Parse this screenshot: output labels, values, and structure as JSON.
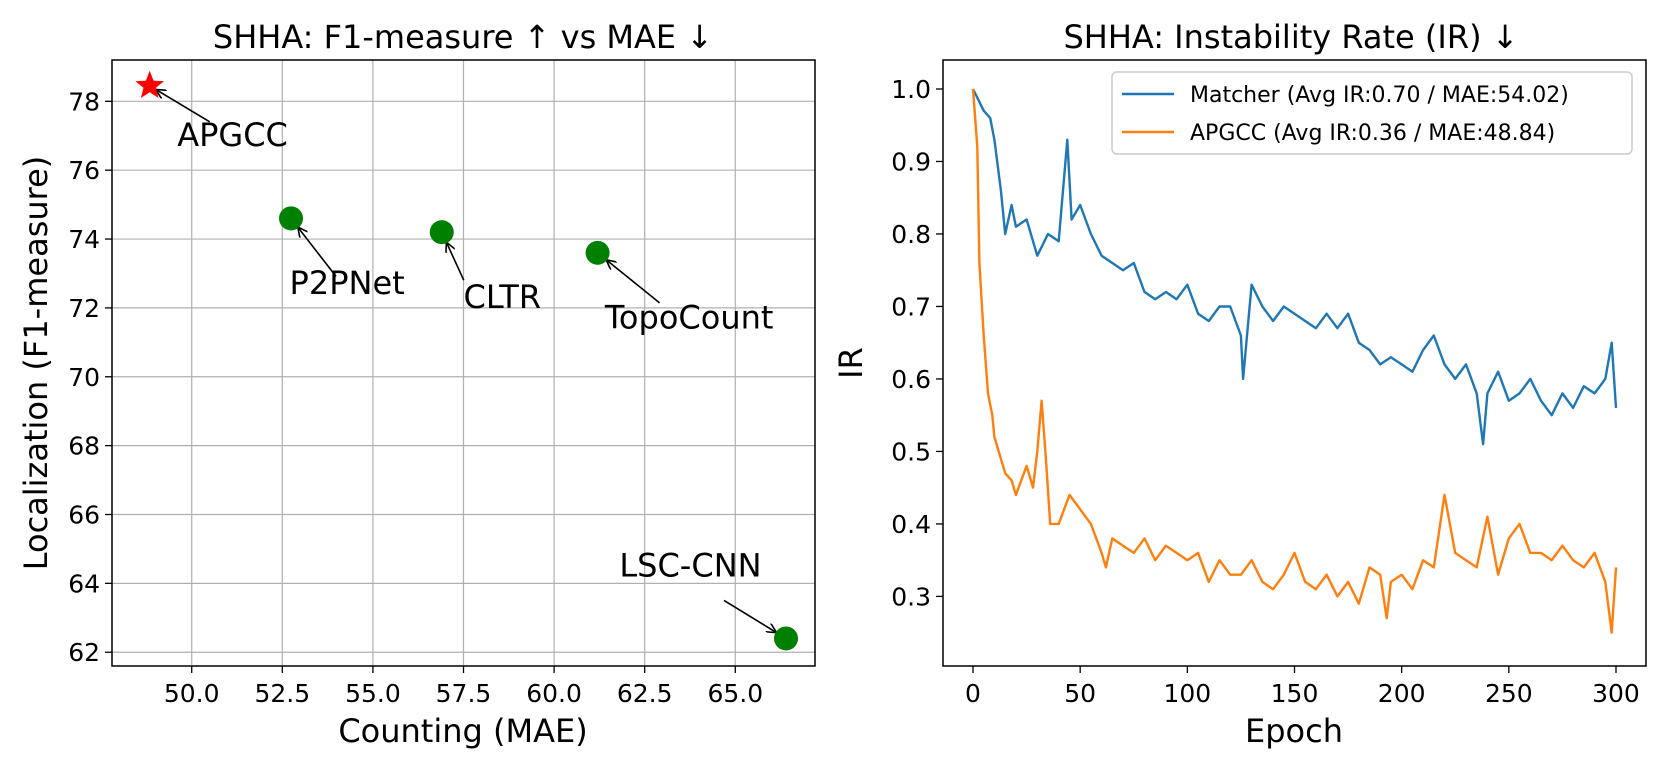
{
  "chart_data": [
    {
      "type": "scatter",
      "title": "SHHA: F1-measure ↑  vs MAE ↓",
      "xlabel": "Counting (MAE)",
      "ylabel": "Localization (F1-measure)",
      "xlim": [
        47.8,
        67.2
      ],
      "ylim": [
        61.6,
        79.2
      ],
      "xticks": [
        50.0,
        52.5,
        55.0,
        57.5,
        60.0,
        62.5,
        65.0
      ],
      "xtick_labels": [
        "50.0",
        "52.5",
        "55.0",
        "57.5",
        "60.0",
        "62.5",
        "65.0"
      ],
      "yticks": [
        62,
        64,
        66,
        68,
        70,
        72,
        74,
        76,
        78
      ],
      "ytick_labels": [
        "62",
        "64",
        "66",
        "68",
        "70",
        "72",
        "74",
        "76",
        "78"
      ],
      "grid": true,
      "points": [
        {
          "label": "APGCC",
          "x": 48.84,
          "y": 78.45,
          "marker": "star",
          "color": "#ff0000",
          "text_x": 49.6,
          "text_y": 76.7
        },
        {
          "label": "P2PNet",
          "x": 52.74,
          "y": 74.6,
          "marker": "circle",
          "color": "#008000",
          "text_x": 52.7,
          "text_y": 72.4
        },
        {
          "label": "CLTR",
          "x": 56.9,
          "y": 74.2,
          "marker": "circle",
          "color": "#008000",
          "text_x": 57.5,
          "text_y": 72.0
        },
        {
          "label": "TopoCount",
          "x": 61.2,
          "y": 73.6,
          "marker": "circle",
          "color": "#008000",
          "text_x": 61.4,
          "text_y": 71.4
        },
        {
          "label": "LSC-CNN",
          "x": 66.4,
          "y": 62.4,
          "marker": "circle",
          "color": "#008000",
          "text_x": 61.8,
          "text_y": 64.2
        }
      ]
    },
    {
      "type": "line",
      "title": "SHHA: Instability Rate (IR) ↓",
      "xlabel": "Epoch",
      "ylabel": "IR",
      "xlim": [
        -14,
        314
      ],
      "ylim": [
        0.204,
        1.04
      ],
      "xticks": [
        0,
        50,
        100,
        150,
        200,
        250,
        300
      ],
      "xtick_labels": [
        "0",
        "50",
        "100",
        "150",
        "200",
        "250",
        "300"
      ],
      "yticks": [
        0.3,
        0.4,
        0.5,
        0.6,
        0.7,
        0.8,
        0.9,
        1.0
      ],
      "ytick_labels": [
        "0.3",
        "0.4",
        "0.5",
        "0.6",
        "0.7",
        "0.8",
        "0.9",
        "1.0"
      ],
      "grid": false,
      "legend_position": "top-right",
      "series": [
        {
          "name": "Matcher (Avg IR:0.70 / MAE:54.02)",
          "color": "#1f77b4",
          "x": [
            0,
            5,
            8,
            10,
            13,
            15,
            18,
            20,
            25,
            30,
            35,
            40,
            44,
            46,
            50,
            55,
            60,
            65,
            70,
            75,
            80,
            85,
            90,
            95,
            100,
            105,
            110,
            115,
            120,
            125,
            126,
            130,
            135,
            140,
            145,
            150,
            155,
            160,
            165,
            170,
            175,
            180,
            185,
            190,
            195,
            200,
            205,
            210,
            215,
            220,
            225,
            230,
            235,
            238,
            240,
            245,
            250,
            255,
            260,
            265,
            270,
            275,
            280,
            285,
            290,
            295,
            298,
            300
          ],
          "y": [
            1.0,
            0.97,
            0.96,
            0.93,
            0.86,
            0.8,
            0.84,
            0.81,
            0.82,
            0.77,
            0.8,
            0.79,
            0.93,
            0.82,
            0.84,
            0.8,
            0.77,
            0.76,
            0.75,
            0.76,
            0.72,
            0.71,
            0.72,
            0.71,
            0.73,
            0.69,
            0.68,
            0.7,
            0.7,
            0.66,
            0.6,
            0.73,
            0.7,
            0.68,
            0.7,
            0.69,
            0.68,
            0.67,
            0.69,
            0.67,
            0.69,
            0.65,
            0.64,
            0.62,
            0.63,
            0.62,
            0.61,
            0.64,
            0.66,
            0.62,
            0.6,
            0.62,
            0.58,
            0.51,
            0.58,
            0.61,
            0.57,
            0.58,
            0.6,
            0.57,
            0.55,
            0.58,
            0.56,
            0.59,
            0.58,
            0.6,
            0.65,
            0.56
          ]
        },
        {
          "name": "APGCC (Avg IR:0.36 / MAE:48.84)",
          "color": "#ff7f0e",
          "x": [
            0,
            2,
            3,
            5,
            7,
            9,
            10,
            12,
            15,
            18,
            20,
            25,
            28,
            30,
            32,
            34,
            36,
            40,
            45,
            50,
            55,
            60,
            62,
            65,
            70,
            75,
            80,
            85,
            90,
            95,
            100,
            105,
            110,
            115,
            120,
            125,
            130,
            135,
            140,
            145,
            150,
            155,
            160,
            165,
            170,
            175,
            180,
            185,
            190,
            193,
            195,
            200,
            205,
            210,
            215,
            220,
            225,
            230,
            235,
            240,
            245,
            250,
            255,
            260,
            265,
            270,
            275,
            280,
            285,
            290,
            295,
            298,
            300
          ],
          "y": [
            1.0,
            0.92,
            0.76,
            0.66,
            0.58,
            0.55,
            0.52,
            0.5,
            0.47,
            0.46,
            0.44,
            0.48,
            0.45,
            0.5,
            0.57,
            0.49,
            0.4,
            0.4,
            0.44,
            0.42,
            0.4,
            0.36,
            0.34,
            0.38,
            0.37,
            0.36,
            0.38,
            0.35,
            0.37,
            0.36,
            0.35,
            0.36,
            0.32,
            0.35,
            0.33,
            0.33,
            0.35,
            0.32,
            0.31,
            0.33,
            0.36,
            0.32,
            0.31,
            0.33,
            0.3,
            0.32,
            0.29,
            0.34,
            0.33,
            0.27,
            0.32,
            0.33,
            0.31,
            0.35,
            0.34,
            0.44,
            0.36,
            0.35,
            0.34,
            0.41,
            0.33,
            0.38,
            0.4,
            0.36,
            0.36,
            0.35,
            0.37,
            0.35,
            0.34,
            0.36,
            0.32,
            0.25,
            0.34
          ]
        }
      ]
    }
  ]
}
